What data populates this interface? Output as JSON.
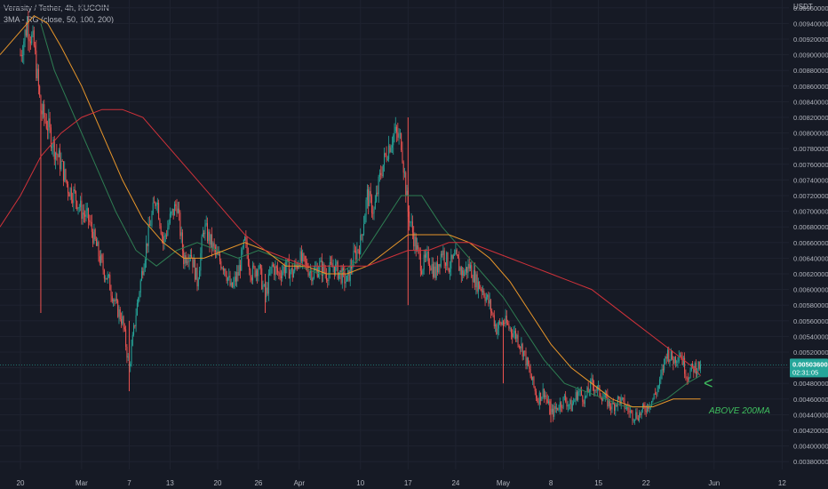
{
  "legend": {
    "symbol": "Verasity / Tether, 4h, KUCOIN",
    "indicator": "3MA - RG (close, 50, 100, 200)"
  },
  "colors": {
    "background": "#161a25",
    "grid": "#1f2330",
    "up": "#26a69a",
    "down": "#ef5350",
    "ma50": "#2e7d52",
    "ma100": "#e8962a",
    "ma200": "#d0323a",
    "annotation": "#3fbf5f",
    "price_tag": "#26a69a"
  },
  "chart_data": {
    "type": "candlestick",
    "title": "Verasity / Tether, 4h, KUCOIN",
    "ylabel": "USDT",
    "ylim": [
      0.0037,
      0.0097
    ],
    "y_ticks": [
      "0.00960000",
      "0.00940000",
      "0.00920000",
      "0.00900000",
      "0.00880000",
      "0.00860000",
      "0.00840000",
      "0.00820000",
      "0.00800000",
      "0.00780000",
      "0.00760000",
      "0.00740000",
      "0.00720000",
      "0.00700000",
      "0.00680000",
      "0.00660000",
      "0.00640000",
      "0.00620000",
      "0.00600000",
      "0.00580000",
      "0.00560000",
      "0.00540000",
      "0.00520000",
      "0.00500000",
      "0.00480000",
      "0.00460000",
      "0.00440000",
      "0.00420000",
      "0.00400000",
      "0.00380000"
    ],
    "x_ticks": [
      "20",
      "Mar",
      "7",
      "13",
      "20",
      "26",
      "Apr",
      "10",
      "17",
      "24",
      "May",
      "8",
      "15",
      "22",
      "Jun",
      "12"
    ],
    "x_tick_days": [
      0,
      9,
      16,
      22,
      29,
      35,
      41,
      50,
      57,
      64,
      71,
      78,
      85,
      92,
      102,
      112
    ],
    "x_range_days": [
      -3,
      113
    ],
    "close_path": [
      [
        0,
        0.009
      ],
      [
        1,
        0.0094
      ],
      [
        2,
        0.0091
      ],
      [
        3,
        0.0083
      ],
      [
        4,
        0.0081
      ],
      [
        5,
        0.0078
      ],
      [
        6,
        0.0076
      ],
      [
        7,
        0.0073
      ],
      [
        8,
        0.0072
      ],
      [
        9,
        0.007
      ],
      [
        10,
        0.0069
      ],
      [
        11,
        0.0066
      ],
      [
        12,
        0.0063
      ],
      [
        13,
        0.0061
      ],
      [
        14,
        0.0058
      ],
      [
        15,
        0.0056
      ],
      [
        16,
        0.005
      ],
      [
        17,
        0.0057
      ],
      [
        18,
        0.0063
      ],
      [
        19,
        0.0068
      ],
      [
        20,
        0.0072
      ],
      [
        21,
        0.0066
      ],
      [
        22,
        0.0069
      ],
      [
        23,
        0.0071
      ],
      [
        24,
        0.0064
      ],
      [
        25,
        0.0065
      ],
      [
        26,
        0.0061
      ],
      [
        27,
        0.0068
      ],
      [
        28,
        0.0066
      ],
      [
        29,
        0.0064
      ],
      [
        30,
        0.0063
      ],
      [
        31,
        0.006
      ],
      [
        32,
        0.0062
      ],
      [
        33,
        0.0066
      ],
      [
        34,
        0.0062
      ],
      [
        35,
        0.0063
      ],
      [
        36,
        0.0059
      ],
      [
        37,
        0.0063
      ],
      [
        38,
        0.0062
      ],
      [
        39,
        0.0063
      ],
      [
        40,
        0.0062
      ],
      [
        41,
        0.0064
      ],
      [
        42,
        0.0063
      ],
      [
        43,
        0.0062
      ],
      [
        44,
        0.0063
      ],
      [
        45,
        0.0062
      ],
      [
        46,
        0.0063
      ],
      [
        47,
        0.0062
      ],
      [
        48,
        0.0061
      ],
      [
        49,
        0.0064
      ],
      [
        50,
        0.0066
      ],
      [
        51,
        0.0072
      ],
      [
        52,
        0.007
      ],
      [
        53,
        0.0075
      ],
      [
        54,
        0.0078
      ],
      [
        55,
        0.008
      ],
      [
        56,
        0.0079
      ],
      [
        57,
        0.007
      ],
      [
        58,
        0.0066
      ],
      [
        59,
        0.0063
      ],
      [
        60,
        0.0064
      ],
      [
        61,
        0.0062
      ],
      [
        62,
        0.0065
      ],
      [
        63,
        0.0063
      ],
      [
        64,
        0.0064
      ],
      [
        65,
        0.0062
      ],
      [
        66,
        0.0063
      ],
      [
        67,
        0.0061
      ],
      [
        68,
        0.006
      ],
      [
        69,
        0.0058
      ],
      [
        70,
        0.0055
      ],
      [
        71,
        0.0056
      ],
      [
        72,
        0.0055
      ],
      [
        73,
        0.0054
      ],
      [
        74,
        0.0052
      ],
      [
        75,
        0.0049
      ],
      [
        76,
        0.0046
      ],
      [
        77,
        0.0047
      ],
      [
        78,
        0.0044
      ],
      [
        79,
        0.0045
      ],
      [
        80,
        0.0046
      ],
      [
        81,
        0.0045
      ],
      [
        82,
        0.0047
      ],
      [
        83,
        0.0046
      ],
      [
        84,
        0.0048
      ],
      [
        85,
        0.0047
      ],
      [
        86,
        0.0046
      ],
      [
        87,
        0.0045
      ],
      [
        88,
        0.0046
      ],
      [
        89,
        0.0045
      ],
      [
        90,
        0.0044
      ],
      [
        91,
        0.0044
      ],
      [
        92,
        0.0045
      ],
      [
        93,
        0.0046
      ],
      [
        94,
        0.0048
      ],
      [
        95,
        0.0052
      ],
      [
        96,
        0.0051
      ],
      [
        97,
        0.0052
      ],
      [
        98,
        0.0049
      ],
      [
        99,
        0.005
      ],
      [
        100,
        0.00503
      ]
    ],
    "spikes": [
      [
        3,
        0.0057,
        0.0083
      ],
      [
        16,
        0.0047,
        0.0056
      ],
      [
        36,
        0.0057,
        0.0062
      ],
      [
        57,
        0.0058,
        0.0082
      ],
      [
        71,
        0.0048,
        0.0056
      ],
      [
        78,
        0.0043,
        0.0046
      ]
    ],
    "series": [
      {
        "name": "MA 50",
        "color_key": "ma50",
        "values": [
          [
            3,
            0.0094
          ],
          [
            5,
            0.0088
          ],
          [
            8,
            0.0082
          ],
          [
            11,
            0.0076
          ],
          [
            14,
            0.007
          ],
          [
            17,
            0.0065
          ],
          [
            20,
            0.0063
          ],
          [
            23,
            0.0065
          ],
          [
            26,
            0.0066
          ],
          [
            29,
            0.0065
          ],
          [
            32,
            0.0064
          ],
          [
            35,
            0.0065
          ],
          [
            38,
            0.0064
          ],
          [
            41,
            0.0063
          ],
          [
            44,
            0.0062
          ],
          [
            47,
            0.0062
          ],
          [
            50,
            0.0064
          ],
          [
            53,
            0.0068
          ],
          [
            56,
            0.0072
          ],
          [
            59,
            0.0072
          ],
          [
            62,
            0.0068
          ],
          [
            65,
            0.0065
          ],
          [
            68,
            0.0062
          ],
          [
            71,
            0.0059
          ],
          [
            74,
            0.0055
          ],
          [
            77,
            0.0051
          ],
          [
            80,
            0.0048
          ],
          [
            83,
            0.0047
          ],
          [
            86,
            0.0046
          ],
          [
            89,
            0.0045
          ],
          [
            92,
            0.0045
          ],
          [
            95,
            0.0046
          ],
          [
            98,
            0.0048
          ],
          [
            100,
            0.0049
          ]
        ]
      },
      {
        "name": "MA 100",
        "color_key": "ma100",
        "values": [
          [
            -3,
            0.009
          ],
          [
            0,
            0.0093
          ],
          [
            2,
            0.0095
          ],
          [
            4,
            0.0094
          ],
          [
            6,
            0.0091
          ],
          [
            9,
            0.0086
          ],
          [
            12,
            0.008
          ],
          [
            15,
            0.0074
          ],
          [
            18,
            0.0069
          ],
          [
            21,
            0.0066
          ],
          [
            24,
            0.0064
          ],
          [
            27,
            0.0064
          ],
          [
            30,
            0.0065
          ],
          [
            33,
            0.0066
          ],
          [
            36,
            0.0065
          ],
          [
            39,
            0.0063
          ],
          [
            42,
            0.0063
          ],
          [
            45,
            0.0062
          ],
          [
            48,
            0.0062
          ],
          [
            51,
            0.0063
          ],
          [
            54,
            0.0065
          ],
          [
            57,
            0.0067
          ],
          [
            60,
            0.0067
          ],
          [
            63,
            0.0067
          ],
          [
            66,
            0.0066
          ],
          [
            69,
            0.0064
          ],
          [
            72,
            0.0061
          ],
          [
            75,
            0.0057
          ],
          [
            78,
            0.0053
          ],
          [
            81,
            0.005
          ],
          [
            84,
            0.0048
          ],
          [
            87,
            0.0046
          ],
          [
            90,
            0.0045
          ],
          [
            93,
            0.0045
          ],
          [
            96,
            0.0046
          ],
          [
            99,
            0.0046
          ],
          [
            100,
            0.0046
          ]
        ]
      },
      {
        "name": "MA 200",
        "color_key": "ma200",
        "values": [
          [
            -3,
            0.0068
          ],
          [
            0,
            0.0072
          ],
          [
            3,
            0.0077
          ],
          [
            6,
            0.008
          ],
          [
            9,
            0.0082
          ],
          [
            12,
            0.0083
          ],
          [
            15,
            0.0083
          ],
          [
            18,
            0.0082
          ],
          [
            21,
            0.0079
          ],
          [
            24,
            0.0076
          ],
          [
            27,
            0.0073
          ],
          [
            30,
            0.007
          ],
          [
            33,
            0.0067
          ],
          [
            36,
            0.0065
          ],
          [
            39,
            0.0064
          ],
          [
            42,
            0.0063
          ],
          [
            45,
            0.0063
          ],
          [
            48,
            0.0063
          ],
          [
            51,
            0.0063
          ],
          [
            54,
            0.0064
          ],
          [
            57,
            0.0065
          ],
          [
            60,
            0.0065
          ],
          [
            63,
            0.0066
          ],
          [
            66,
            0.0066
          ],
          [
            69,
            0.0065
          ],
          [
            72,
            0.0064
          ],
          [
            75,
            0.0063
          ],
          [
            78,
            0.0062
          ],
          [
            81,
            0.0061
          ],
          [
            84,
            0.006
          ],
          [
            87,
            0.0058
          ],
          [
            90,
            0.0056
          ],
          [
            93,
            0.0054
          ],
          [
            96,
            0.0052
          ],
          [
            99,
            0.005
          ],
          [
            100,
            0.0049
          ]
        ]
      }
    ],
    "last_price": {
      "value": 0.005036,
      "label": "0.00503600",
      "countdown": "02:31:05"
    },
    "annotation": {
      "text": "ABOVE 200MA",
      "arrow": "<"
    },
    "grid": true
  }
}
